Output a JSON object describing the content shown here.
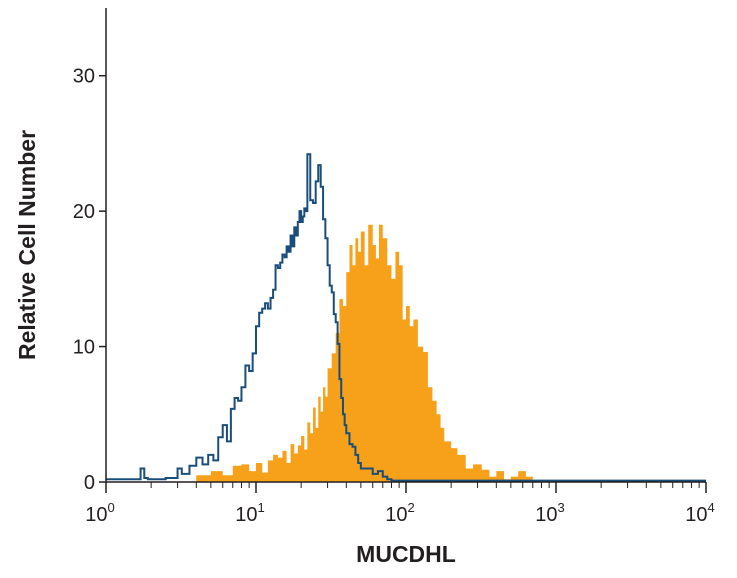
{
  "chart_data": {
    "type": "area",
    "title": "",
    "xlabel": "MUCDHL",
    "ylabel": "Relative Cell Number",
    "x_scale": "log",
    "xlim": [
      1,
      10000
    ],
    "ylim": [
      0,
      35
    ],
    "grid": false,
    "x_ticks": [
      {
        "value": 1,
        "base": "10",
        "exp": "0"
      },
      {
        "value": 10,
        "base": "10",
        "exp": "1"
      },
      {
        "value": 100,
        "base": "10",
        "exp": "2"
      },
      {
        "value": 1000,
        "base": "10",
        "exp": "3"
      },
      {
        "value": 10000,
        "base": "10",
        "exp": "4"
      }
    ],
    "y_ticks": [
      0,
      10,
      20,
      30
    ],
    "series": [
      {
        "style": "filled",
        "color": "#f7a11a",
        "x": [
          1,
          3,
          4,
          5,
          6,
          7,
          8,
          9,
          10,
          11,
          12,
          13,
          14,
          15,
          16,
          17,
          18,
          19,
          20,
          21,
          22,
          23,
          24,
          25,
          26,
          27,
          28,
          29,
          30,
          32,
          34,
          36,
          38,
          40,
          42,
          44,
          46,
          48,
          50,
          53,
          56,
          60,
          63,
          66,
          70,
          75,
          80,
          85,
          90,
          95,
          100,
          106,
          112,
          120,
          130,
          140,
          150,
          160,
          170,
          180,
          200,
          220,
          250,
          280,
          320,
          360,
          400,
          450,
          500,
          560,
          630,
          700,
          10000
        ],
        "y": [
          0,
          0,
          0.5,
          0.8,
          0.5,
          1.2,
          1.3,
          0.8,
          1.4,
          0.7,
          1.6,
          2.0,
          1.8,
          2.3,
          1.4,
          2.8,
          2.1,
          2.7,
          3.4,
          2.4,
          4.4,
          3.6,
          5.5,
          4.0,
          6.3,
          5.2,
          7.0,
          6.3,
          8.4,
          9.5,
          11.0,
          13.5,
          13.0,
          15.5,
          17.5,
          16.0,
          18.0,
          17.0,
          18.5,
          16.0,
          19.0,
          17.5,
          16.5,
          19.0,
          18.0,
          16.0,
          15.0,
          17.0,
          16.0,
          12.0,
          13.0,
          11.5,
          12.0,
          10.0,
          9.6,
          7.0,
          6.0,
          5.0,
          4.0,
          3.0,
          2.5,
          2.0,
          1.0,
          1.3,
          0.9,
          0.4,
          0.8,
          0.2,
          0.4,
          0.8,
          0.4,
          0,
          0
        ]
      },
      {
        "style": "outline",
        "color": "#1a4e7a",
        "x": [
          1,
          1.6,
          1.7,
          1.8,
          1.9,
          2.5,
          3.0,
          3.2,
          3.6,
          4.0,
          4.4,
          4.8,
          5.2,
          5.6,
          6.0,
          6.4,
          6.8,
          7.2,
          7.6,
          8.0,
          8.5,
          9.0,
          9.5,
          10.0,
          10.5,
          11.0,
          11.5,
          12.0,
          12.5,
          13.0,
          13.5,
          14.0,
          14.5,
          15.0,
          15.5,
          16.0,
          16.5,
          17.0,
          17.5,
          18.0,
          18.5,
          19.0,
          19.5,
          20.0,
          20.5,
          21.0,
          21.5,
          22.0,
          23.0,
          24.0,
          25.0,
          26.0,
          27.0,
          28.0,
          29.0,
          30.0,
          31.0,
          32.0,
          33.0,
          34.0,
          35.0,
          36.0,
          37.0,
          38.0,
          39.0,
          40.0,
          42.0,
          44.0,
          46.0,
          48.0,
          50.0,
          55.0,
          60.0,
          65.0,
          70.0,
          75.0,
          80.0,
          10000
        ],
        "y": [
          0.2,
          0.2,
          1.0,
          0.3,
          0.2,
          0.3,
          1.0,
          0.6,
          1.2,
          1.8,
          1.3,
          2.0,
          1.6,
          3.3,
          4.2,
          3.0,
          5.4,
          6.2,
          6.0,
          7.0,
          8.6,
          8.2,
          9.5,
          11.5,
          12.5,
          12.8,
          13.2,
          12.8,
          13.6,
          14.2,
          16.0,
          15.8,
          16.2,
          16.8,
          16.6,
          17.4,
          17.0,
          18.2,
          17.4,
          18.8,
          18.2,
          19.2,
          20.0,
          19.2,
          19.6,
          20.2,
          20.0,
          24.2,
          20.8,
          20.6,
          22.2,
          23.4,
          21.8,
          19.4,
          18.0,
          16.0,
          14.5,
          14.0,
          12.4,
          11.8,
          10.2,
          7.6,
          6.2,
          5.0,
          4.2,
          3.6,
          2.8,
          2.6,
          2.0,
          1.4,
          1.0,
          1.0,
          0.6,
          0.8,
          0.4,
          0.2,
          0.1,
          0.1
        ]
      }
    ]
  }
}
